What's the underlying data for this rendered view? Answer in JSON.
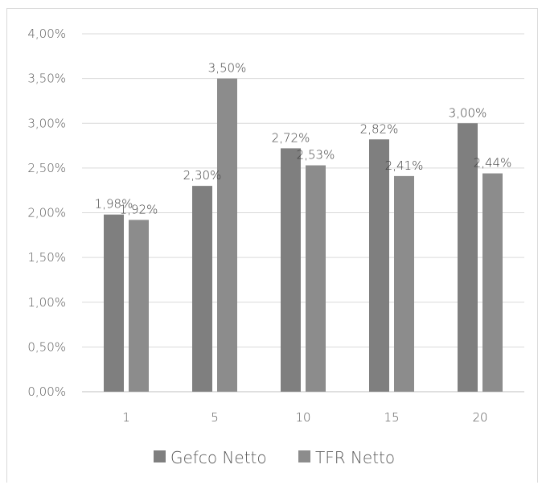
{
  "chart_data": {
    "type": "bar",
    "categories": [
      "1",
      "5",
      "10",
      "15",
      "20"
    ],
    "series": [
      {
        "name": "Gefco Netto",
        "color": "#7f7f7f",
        "values": [
          1.98,
          2.3,
          2.72,
          2.82,
          3.0
        ],
        "labels": [
          "1,98%",
          "2,30%",
          "2,72%",
          "2,82%",
          "3,00%"
        ]
      },
      {
        "name": "TFR Netto",
        "color": "#8c8c8c",
        "values": [
          1.92,
          3.5,
          2.53,
          2.41,
          2.44
        ],
        "labels": [
          "1,92%",
          "3,50%",
          "2,53%",
          "2,41%",
          "2,44%"
        ]
      }
    ],
    "ylim": [
      0,
      4.0
    ],
    "yticks": [
      0,
      0.5,
      1.0,
      1.5,
      2.0,
      2.5,
      3.0,
      3.5,
      4.0
    ],
    "ytick_labels": [
      "0,00%",
      "0,50%",
      "1,00%",
      "1,50%",
      "2,00%",
      "2,50%",
      "3,00%",
      "3,50%",
      "4,00%"
    ],
    "grid": true,
    "legend": "bottom",
    "title": "",
    "xlabel": "",
    "ylabel": ""
  }
}
